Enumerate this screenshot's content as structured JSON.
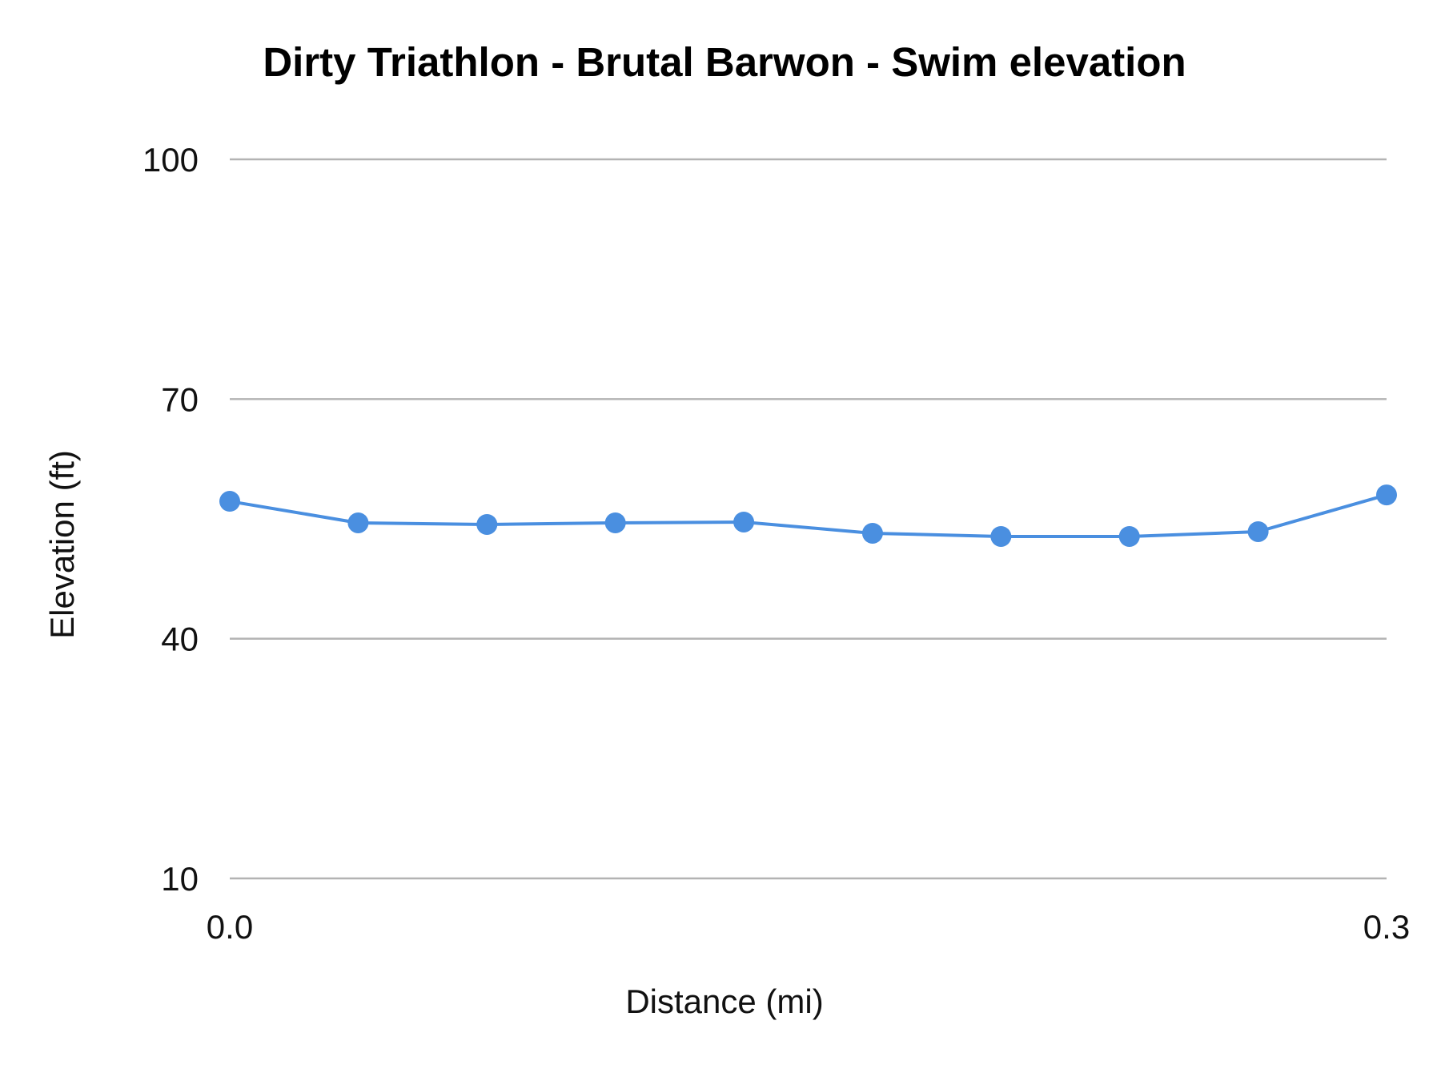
{
  "chart_data": {
    "type": "line",
    "title": "Dirty Triathlon - Brutal Barwon  - Swim elevation",
    "xlabel": "Distance (mi)",
    "ylabel": "Elevation (ft)",
    "xlim": [
      0.0,
      0.3
    ],
    "ylim": [
      10,
      100
    ],
    "y_ticks": [
      "10",
      "40",
      "70",
      "100"
    ],
    "x_ticks": [
      "0.0",
      "0.3"
    ],
    "grid": true,
    "legend": "none",
    "color": "#4a8fe0",
    "series": [
      {
        "x": [
          0.0,
          0.0333,
          0.0667,
          0.1,
          0.1333,
          0.1667,
          0.2,
          0.2333,
          0.2667,
          0.3
        ],
        "y": [
          57.2,
          54.5,
          54.3,
          54.5,
          54.6,
          53.2,
          52.8,
          52.8,
          53.4,
          58.0
        ]
      }
    ]
  }
}
